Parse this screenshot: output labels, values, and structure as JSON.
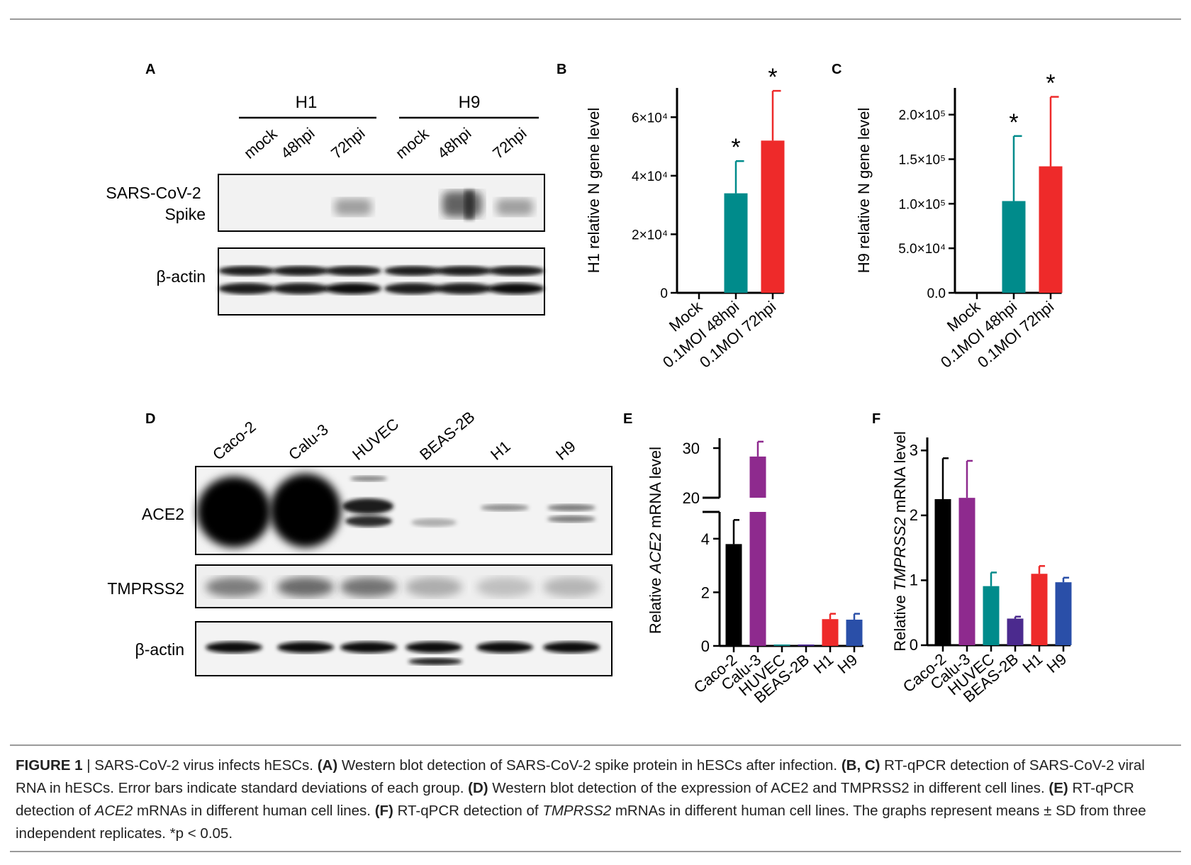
{
  "panels": {
    "A": {
      "letter": "A",
      "groups": [
        "H1",
        "H9"
      ],
      "lanes": [
        "mock",
        "48hpi",
        "72hpi",
        "mock",
        "48hpi",
        "72hpi"
      ],
      "rows": [
        {
          "label_lines": [
            "SARS-CoV-2",
            "Spike"
          ]
        },
        {
          "label_lines": [
            "β-actin"
          ]
        }
      ]
    },
    "D": {
      "letter": "D",
      "lanes": [
        "Caco-2",
        "Calu-3",
        "HUVEC",
        "BEAS-2B",
        "H1",
        "H9"
      ],
      "rows": [
        {
          "label_lines": [
            "ACE2"
          ]
        },
        {
          "label_lines": [
            "TMPRSS2"
          ]
        },
        {
          "label_lines": [
            "β-actin"
          ]
        }
      ]
    }
  },
  "chart_data": [
    {
      "panel": "B",
      "type": "bar",
      "title": "",
      "ylabel": "H1 relative N gene level",
      "xlabel": "",
      "categories": [
        "Mock",
        "0.1MOI 48hpi",
        "0.1MOI 72hpi"
      ],
      "values": [
        0,
        34000,
        52000
      ],
      "errors": [
        0,
        11000,
        17000
      ],
      "significance": [
        "",
        "*",
        "*"
      ],
      "colors": [
        "#008b8b",
        "#008b8b",
        "#ee2a2a"
      ],
      "ylim": [
        0,
        70000
      ],
      "yticks": [
        0,
        20000,
        40000,
        60000
      ],
      "ytick_labels": [
        "0",
        "2×10⁴",
        "4×10⁴",
        "6×10⁴"
      ]
    },
    {
      "panel": "C",
      "type": "bar",
      "title": "",
      "ylabel": "H9 relative N gene level",
      "xlabel": "",
      "categories": [
        "Mock",
        "0.1MOI 48hpi",
        "0.1MOI 72hpi"
      ],
      "values": [
        0,
        103000,
        142000
      ],
      "errors": [
        0,
        73000,
        78000
      ],
      "significance": [
        "",
        "*",
        "*"
      ],
      "colors": [
        "#008b8b",
        "#008b8b",
        "#ee2a2a"
      ],
      "ylim": [
        0,
        230000
      ],
      "yticks": [
        0,
        50000,
        100000,
        150000,
        200000
      ],
      "ytick_labels": [
        "0.0",
        "5.0×10⁴",
        "1.0×10⁵",
        "1.5×10⁵",
        "2.0×10⁵"
      ]
    },
    {
      "panel": "E",
      "type": "bar",
      "title": "",
      "ylabel_parts": [
        "Relative ",
        "ACE2",
        " mRNA level"
      ],
      "xlabel": "",
      "categories": [
        "Caco-2",
        "Calu-3",
        "HUVEC",
        "BEAS-2B",
        "H1",
        "H9"
      ],
      "values": [
        3.8,
        28.3,
        0.02,
        0.02,
        1.0,
        0.98
      ],
      "errors": [
        0.9,
        3.0,
        0,
        0,
        0.2,
        0.22
      ],
      "colors": [
        "#000000",
        "#8e2a8e",
        "#008b8b",
        "#4b2a8e",
        "#ee2a2a",
        "#2a4fa8"
      ],
      "y_axis_break": {
        "lower": [
          0,
          5
        ],
        "upper": [
          20,
          32
        ]
      },
      "yticks_lower": [
        0,
        2,
        4
      ],
      "yticks_upper": [
        20,
        30
      ]
    },
    {
      "panel": "F",
      "type": "bar",
      "title": "",
      "ylabel_parts": [
        "Relative ",
        "TMPRSS2",
        " mRNA level"
      ],
      "xlabel": "",
      "categories": [
        "Caco-2",
        "Calu-3",
        "HUVEC",
        "BEAS-2B",
        "H1",
        "H9"
      ],
      "values": [
        2.25,
        2.27,
        0.91,
        0.41,
        1.1,
        0.97
      ],
      "errors": [
        0.63,
        0.57,
        0.21,
        0.03,
        0.12,
        0.07
      ],
      "colors": [
        "#000000",
        "#8e2a8e",
        "#008b8b",
        "#4b2a8e",
        "#ee2a2a",
        "#2a4fa8"
      ],
      "ylim": [
        0,
        3.2
      ],
      "yticks": [
        0,
        1,
        2,
        3
      ]
    }
  ],
  "caption": {
    "label": "FIGURE 1",
    "sep": " | ",
    "segments": [
      {
        "text": "SARS-CoV-2 virus infects hESCs. ",
        "style": "normal"
      },
      {
        "text": "(A)",
        "style": "bold"
      },
      {
        "text": " Western blot detection of SARS-CoV-2 spike protein in hESCs after infection. ",
        "style": "normal"
      },
      {
        "text": "(B, C)",
        "style": "bold"
      },
      {
        "text": " RT-qPCR detection of SARS-CoV-2 viral RNA in hESCs. Error bars indicate standard deviations of each group. ",
        "style": "normal"
      },
      {
        "text": "(D)",
        "style": "bold"
      },
      {
        "text": " Western blot detection of the expression of ACE2 and TMPRSS2 in different cell lines. ",
        "style": "normal"
      },
      {
        "text": "(E)",
        "style": "bold"
      },
      {
        "text": " RT-qPCR detection of ",
        "style": "normal"
      },
      {
        "text": "ACE2",
        "style": "italic"
      },
      {
        "text": " mRNAs in different human cell lines. ",
        "style": "normal"
      },
      {
        "text": "(F)",
        "style": "bold"
      },
      {
        "text": " RT-qPCR detection of ",
        "style": "normal"
      },
      {
        "text": "TMPRSS2",
        "style": "italic"
      },
      {
        "text": " mRNAs in different human cell lines. The graphs represent means ± SD from three independent replicates. *p < 0.05.",
        "style": "normal"
      }
    ]
  }
}
